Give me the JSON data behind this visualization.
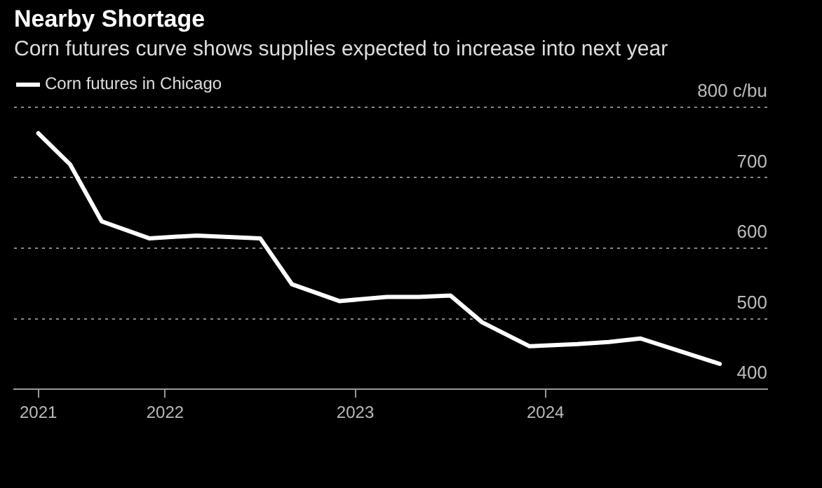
{
  "chart_data": {
    "type": "line",
    "title": "Nearby Shortage",
    "subtitle": "Corn futures curve shows supplies expected to increase into next year",
    "x": [
      "2021-05",
      "2021-07",
      "2021-09",
      "2021-12",
      "2022-03",
      "2022-05",
      "2022-07",
      "2022-09",
      "2022-12",
      "2023-03",
      "2023-05",
      "2023-07",
      "2023-09",
      "2023-12",
      "2024-03",
      "2024-05",
      "2024-07",
      "2024-12"
    ],
    "series": [
      {
        "name": "Corn futures in Chicago",
        "color": "#ffffff",
        "values": [
          763,
          719,
          638,
          614,
          618,
          616,
          614,
          549,
          525,
          531,
          531,
          533,
          495,
          461,
          464,
          467,
          472,
          436
        ]
      }
    ],
    "xlim": [
      "2021-03-15",
      "2025-03"
    ],
    "xticks": [
      {
        "value": "2021-05",
        "label": "2021"
      },
      {
        "value": "2022-01",
        "label": "2022"
      },
      {
        "value": "2023-01",
        "label": "2023"
      },
      {
        "value": "2024-01",
        "label": "2024"
      }
    ],
    "ylim": [
      400,
      800
    ],
    "yticks": [
      400,
      500,
      600,
      700,
      {
        "value": 800,
        "label": "800 c/bu"
      }
    ],
    "grid": "y",
    "legend": "top left",
    "marker": "none",
    "line_style": "solid"
  }
}
